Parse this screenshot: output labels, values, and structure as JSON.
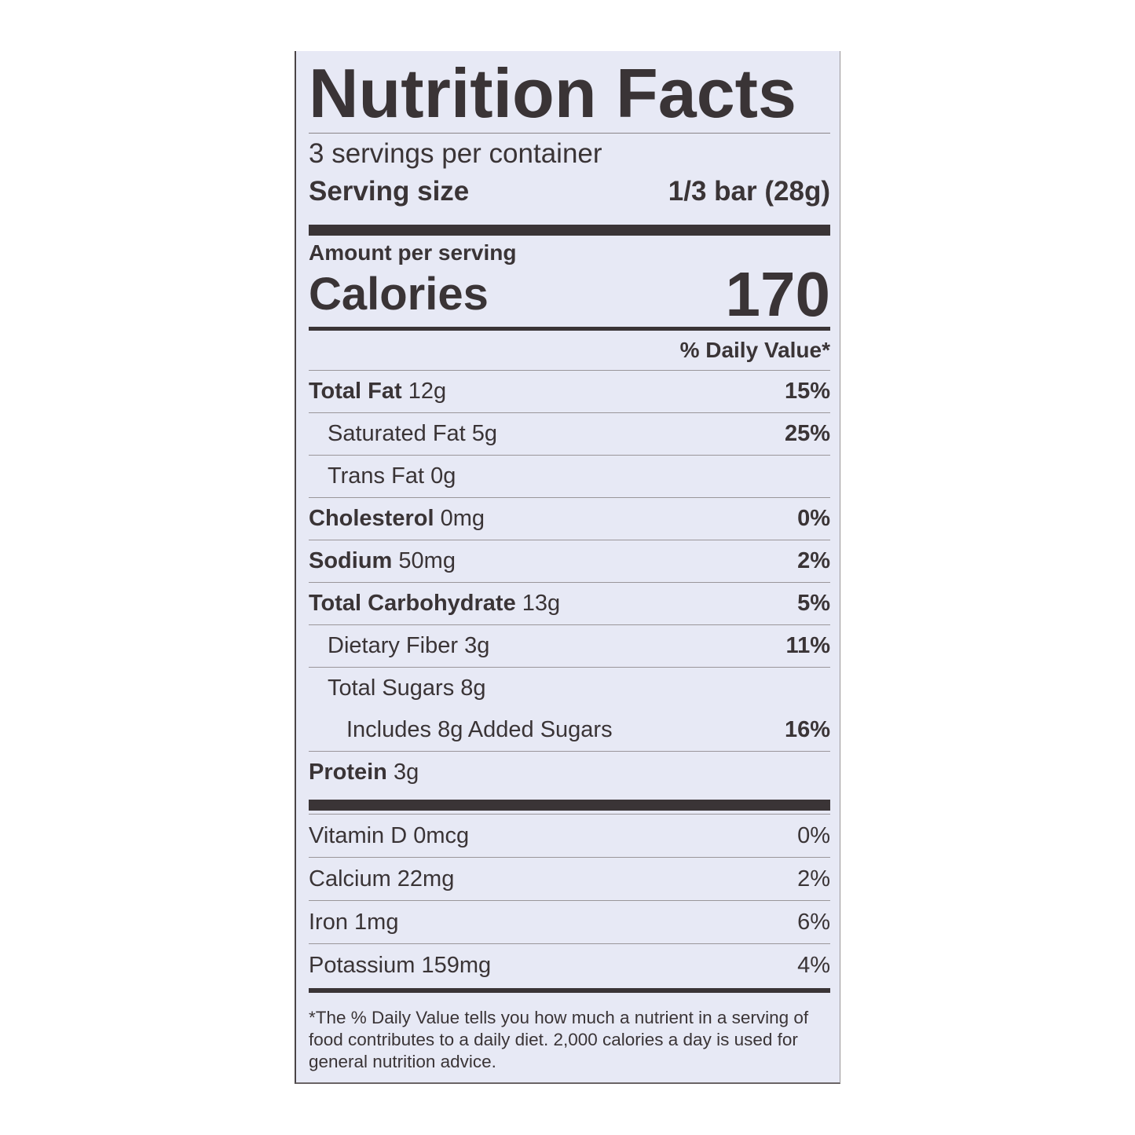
{
  "title": "Nutrition Facts",
  "servings_per_container": "3 servings per container",
  "serving_size": {
    "label": "Serving size",
    "value": "1/3 bar (28g)"
  },
  "amount_per_serving": "Amount per serving",
  "calories": {
    "label": "Calories",
    "value": "170"
  },
  "daily_value_header": "% Daily Value*",
  "nutrients": [
    {
      "name": "Total Fat",
      "amount": "12g",
      "dv": "15%"
    },
    {
      "name": "Saturated Fat",
      "amount": "5g",
      "dv": "25%"
    },
    {
      "name": "Trans Fat",
      "amount": "0g",
      "dv": ""
    },
    {
      "name": "Cholesterol",
      "amount": "0mg",
      "dv": "0%"
    },
    {
      "name": "Sodium",
      "amount": "50mg",
      "dv": "2%"
    },
    {
      "name": "Total Carbohydrate",
      "amount": "13g",
      "dv": "5%"
    },
    {
      "name": "Dietary Fiber",
      "amount": "3g",
      "dv": "11%"
    },
    {
      "name": "Total Sugars",
      "amount": "8g",
      "dv": ""
    },
    {
      "name": "Includes 8g Added Sugars",
      "amount": "",
      "dv": "16%"
    },
    {
      "name": "Protein",
      "amount": "3g",
      "dv": ""
    }
  ],
  "vitamins": [
    {
      "text": "Vitamin D 0mcg",
      "dv": "0%"
    },
    {
      "text": "Calcium 22mg",
      "dv": "2%"
    },
    {
      "text": "Iron 1mg",
      "dv": "6%"
    },
    {
      "text": "Potassium 159mg",
      "dv": "4%"
    }
  ],
  "footnote": "*The % Daily Value tells you how much a nutrient in a serving of food contributes to a daily diet. 2,000 calories a day is used for general nutrition advice."
}
